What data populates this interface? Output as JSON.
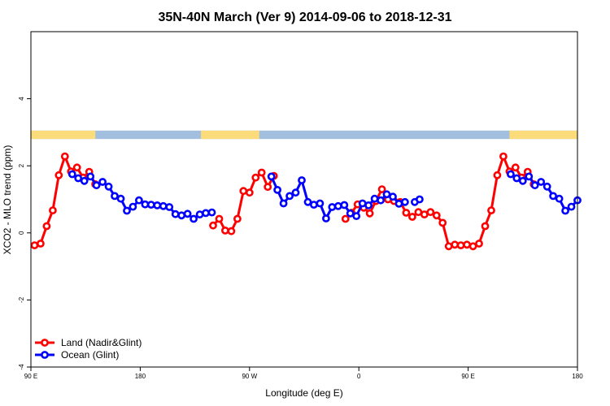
{
  "chart_data": {
    "type": "line",
    "title": "35N-40N March (Ver 9)   2014-09-06 to 2018-12-31",
    "xlabel": "Longitude (deg E)",
    "ylabel": "XCO2 - MLO trend (ppm)",
    "xlim": [
      90,
      540
    ],
    "ylim": [
      -4,
      6
    ],
    "x_ticks": [
      {
        "value": 90,
        "label": "90 E"
      },
      {
        "value": 180,
        "label": "180"
      },
      {
        "value": 270,
        "label": "90 W"
      },
      {
        "value": 360,
        "label": "0"
      },
      {
        "value": 450,
        "label": "90 E"
      },
      {
        "value": 540,
        "label": "180"
      }
    ],
    "y_ticks": [
      {
        "value": -4,
        "label": "-4"
      },
      {
        "value": -2,
        "label": "-2"
      },
      {
        "value": 0,
        "label": "0"
      },
      {
        "value": 2,
        "label": "2"
      },
      {
        "value": 4,
        "label": "4"
      }
    ],
    "land_ocean_strip": {
      "y_range": [
        2.8,
        3.05
      ],
      "land_color": "#fbdb7a",
      "ocean_color": "#a3bfe0",
      "land_intervals": [
        [
          90,
          143
        ],
        [
          230,
          278
        ],
        [
          484,
          545
        ]
      ]
    },
    "legend_position": "bottom-left",
    "series": [
      {
        "name": "Land (Nadir&Glint)",
        "color": "#ff0000",
        "segments": [
          [
            [
              93,
              -0.37
            ],
            [
              98,
              -0.32
            ],
            [
              103,
              0.2
            ],
            [
              108,
              0.67
            ],
            [
              113,
              1.72
            ],
            [
              118,
              2.28
            ],
            [
              123,
              1.83
            ],
            [
              128,
              1.95
            ],
            [
              133,
              1.65
            ],
            [
              138,
              1.82
            ],
            [
              143,
              1.45
            ]
          ],
          [
            [
              240,
              0.22
            ],
            [
              245,
              0.42
            ],
            [
              250,
              0.07
            ],
            [
              255,
              0.05
            ],
            [
              260,
              0.42
            ],
            [
              265,
              1.25
            ],
            [
              270,
              1.2
            ],
            [
              275,
              1.65
            ],
            [
              280,
              1.8
            ],
            [
              285,
              1.37
            ],
            [
              290,
              1.7
            ]
          ],
          [
            [
              349,
              0.42
            ],
            [
              354,
              0.6
            ],
            [
              359,
              0.85
            ],
            [
              364,
              0.75
            ],
            [
              369,
              0.58
            ],
            [
              374,
              0.95
            ],
            [
              379,
              1.3
            ],
            [
              384,
              1.0
            ],
            [
              389,
              0.95
            ],
            [
              394,
              0.92
            ],
            [
              399,
              0.6
            ],
            [
              404,
              0.48
            ],
            [
              409,
              0.62
            ],
            [
              414,
              0.55
            ],
            [
              419,
              0.62
            ],
            [
              424,
              0.52
            ],
            [
              429,
              0.3
            ],
            [
              434,
              -0.4
            ],
            [
              439,
              -0.35
            ],
            [
              444,
              -0.37
            ],
            [
              449,
              -0.35
            ],
            [
              454,
              -0.4
            ],
            [
              459,
              -0.32
            ],
            [
              464,
              0.2
            ],
            [
              469,
              0.67
            ],
            [
              474,
              1.72
            ],
            [
              479,
              2.28
            ],
            [
              484,
              1.83
            ],
            [
              489,
              1.95
            ],
            [
              494,
              1.65
            ],
            [
              499,
              1.82
            ],
            [
              504,
              1.45
            ]
          ]
        ]
      },
      {
        "name": "Ocean (Glint)",
        "color": "#0000ff",
        "segments": [
          [
            [
              124,
              1.75
            ],
            [
              129,
              1.63
            ],
            [
              134,
              1.55
            ],
            [
              139,
              1.68
            ],
            [
              144,
              1.42
            ],
            [
              149,
              1.52
            ],
            [
              154,
              1.38
            ],
            [
              159,
              1.1
            ],
            [
              164,
              1.02
            ],
            [
              169,
              0.66
            ],
            [
              174,
              0.78
            ],
            [
              179,
              0.97
            ],
            [
              184,
              0.85
            ],
            [
              189,
              0.84
            ],
            [
              194,
              0.82
            ],
            [
              199,
              0.8
            ],
            [
              204,
              0.77
            ],
            [
              209,
              0.56
            ],
            [
              214,
              0.52
            ],
            [
              219,
              0.57
            ],
            [
              224,
              0.42
            ],
            [
              229,
              0.55
            ],
            [
              234,
              0.59
            ],
            [
              239,
              0.61
            ]
          ],
          [
            [
              288,
              1.68
            ],
            [
              293,
              1.28
            ],
            [
              298,
              0.88
            ],
            [
              303,
              1.1
            ],
            [
              308,
              1.2
            ],
            [
              313,
              1.57
            ],
            [
              318,
              0.92
            ],
            [
              323,
              0.84
            ],
            [
              328,
              0.88
            ],
            [
              333,
              0.43
            ],
            [
              338,
              0.77
            ],
            [
              343,
              0.8
            ],
            [
              348,
              0.83
            ],
            [
              353,
              0.58
            ],
            [
              358,
              0.5
            ],
            [
              363,
              0.88
            ],
            [
              368,
              0.82
            ],
            [
              373,
              1.02
            ],
            [
              378,
              0.97
            ],
            [
              383,
              1.15
            ],
            [
              388,
              1.08
            ],
            [
              393,
              0.87
            ],
            [
              398,
              0.92
            ]
          ],
          [
            [
              406,
              0.92
            ],
            [
              410,
              1.0
            ]
          ],
          [
            [
              485,
              1.75
            ],
            [
              490,
              1.63
            ],
            [
              495,
              1.55
            ],
            [
              500,
              1.68
            ],
            [
              505,
              1.42
            ],
            [
              510,
              1.52
            ],
            [
              515,
              1.38
            ],
            [
              520,
              1.1
            ],
            [
              525,
              1.02
            ],
            [
              530,
              0.66
            ],
            [
              535,
              0.78
            ],
            [
              540,
              0.97
            ]
          ]
        ]
      }
    ]
  }
}
